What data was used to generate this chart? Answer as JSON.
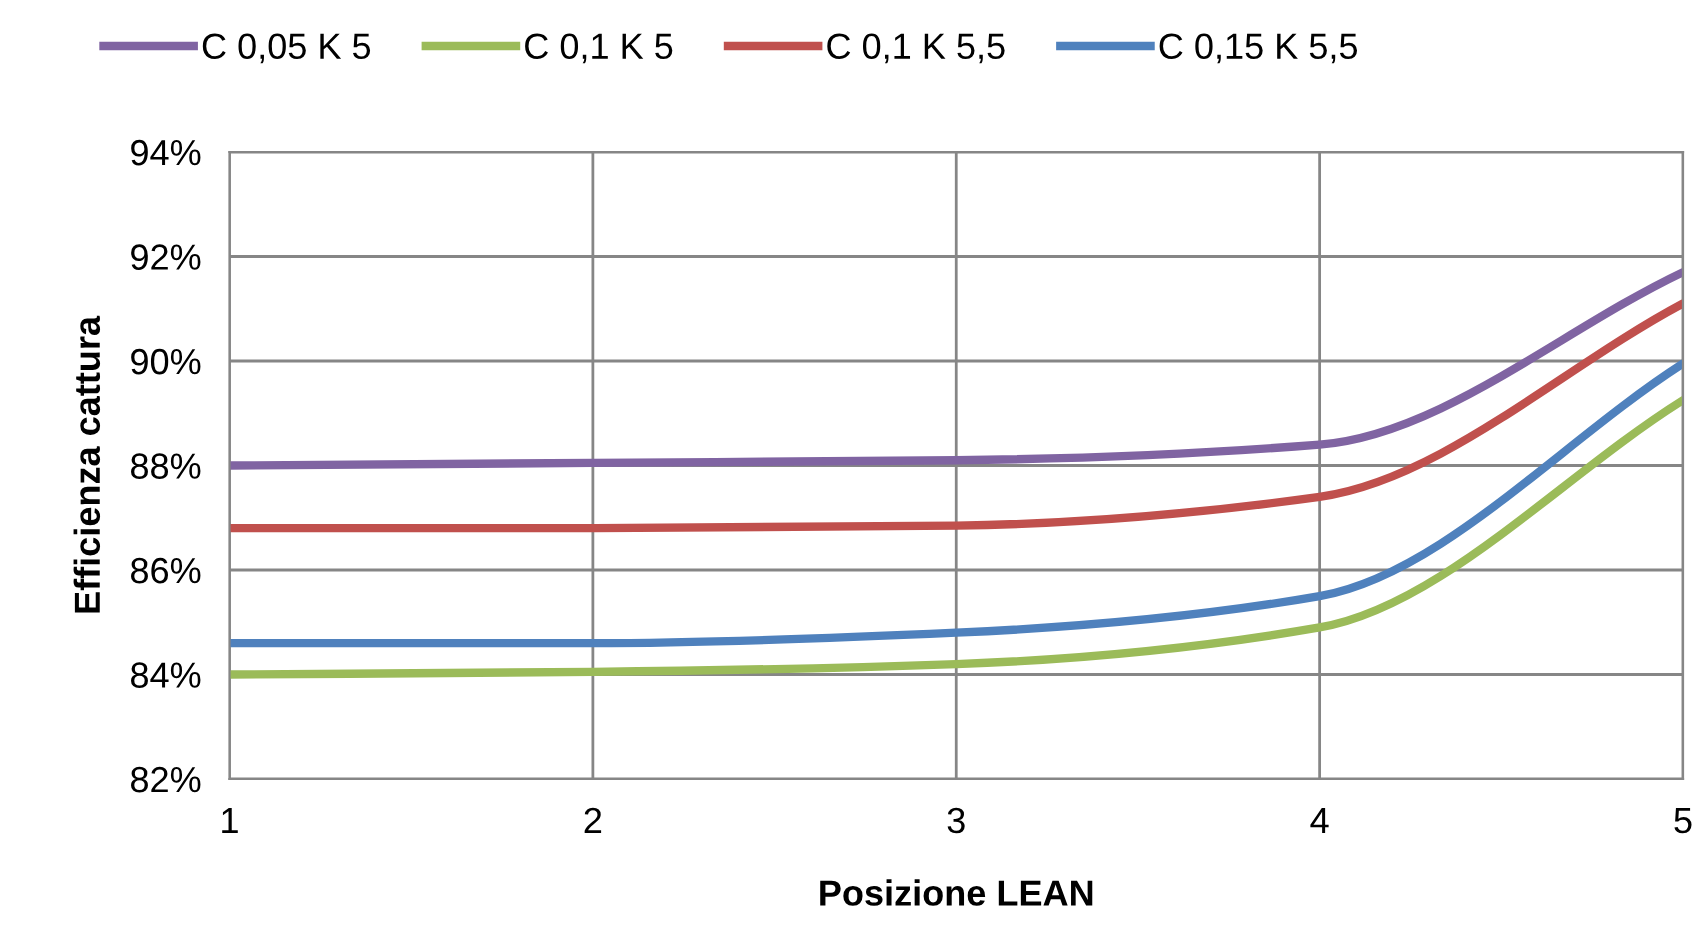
{
  "chart_data": {
    "type": "line",
    "xlabel": "Posizione LEAN",
    "ylabel": "Efficienza cattura",
    "x": [
      1,
      2,
      3,
      4,
      5
    ],
    "series": [
      {
        "name": "C 0,05 K 5",
        "color": "#8064a2",
        "values": [
          88.0,
          88.05,
          88.1,
          88.4,
          91.7
        ]
      },
      {
        "name": "C 0,1 K 5",
        "color": "#9bbb59",
        "values": [
          84.0,
          84.05,
          84.2,
          84.9,
          89.25
        ]
      },
      {
        "name": "C 0,1 K 5,5",
        "color": "#c0504d",
        "values": [
          86.8,
          86.8,
          86.85,
          87.4,
          91.1
        ]
      },
      {
        "name": "C 0,15 K 5,5",
        "color": "#4f81bd",
        "values": [
          84.6,
          84.6,
          84.8,
          85.5,
          89.95
        ]
      }
    ],
    "xlim": [
      1,
      5
    ],
    "xticks": [
      1,
      2,
      3,
      4,
      5
    ],
    "ylim": [
      82,
      94
    ],
    "yticks": [
      {
        "value": 82,
        "label": "82%"
      },
      {
        "value": 84,
        "label": "84%"
      },
      {
        "value": 86,
        "label": "86%"
      },
      {
        "value": 88,
        "label": "88%"
      },
      {
        "value": 90,
        "label": "90%"
      },
      {
        "value": 92,
        "label": "92%"
      },
      {
        "value": 94,
        "label": "94%"
      }
    ],
    "grid": true,
    "legend": "top",
    "marker": "none",
    "line_style": "solid"
  }
}
